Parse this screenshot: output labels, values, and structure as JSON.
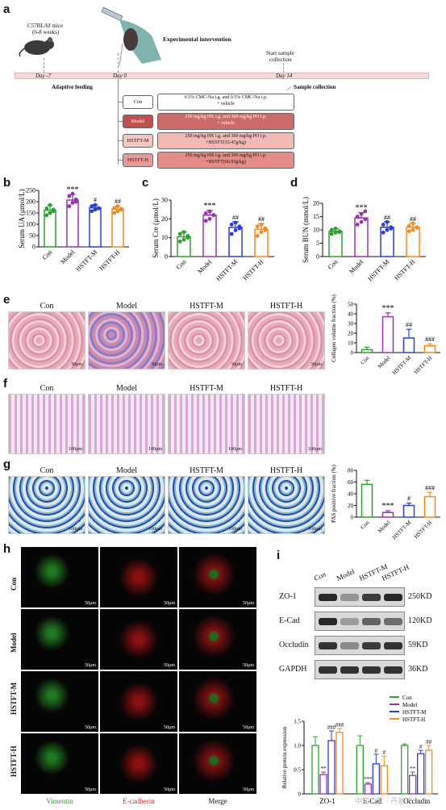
{
  "panel_labels": {
    "a": "a",
    "b": "b",
    "c": "c",
    "d": "d",
    "e": "e",
    "f": "f",
    "g": "g",
    "h": "h",
    "i": "i"
  },
  "scheme": {
    "mice": "C57BL/6J mice",
    "mice_age": "(6-8 weeks)",
    "intervention": "Experimental intervention",
    "start_sample": "Start sample",
    "collection": "collection",
    "day_m7": "Day -7",
    "day_0": "Day 0",
    "day_14": "Day 14",
    "adaptive": "Adaptive feeding",
    "sample_collection": "Sample collection",
    "groups": [
      {
        "name": "Con",
        "line1": "0.5% CMC-Na i.g. and 0.5% CMC-Na i.p.",
        "line2": "+ vehicle",
        "color": "#ffffff",
        "condcolor": "#ffffff",
        "textcolor": "#111111"
      },
      {
        "name": "Model",
        "line1": "250 mg/kg HX i.g. and 300 mg/kg PO i.p.",
        "line2": "+ vehicle",
        "color": "#c0504d",
        "condcolor": "#cd6b68",
        "textcolor": "#ffffff"
      },
      {
        "name": "HSTFT-M",
        "line1": "250 mg/kg HX i.g. and 300 mg/kg PO i.p.",
        "line2": "+HSTFT(33.47g/kg)",
        "color": "#f4c7c3",
        "condcolor": "#f2b8b3",
        "textcolor": "#111111"
      },
      {
        "name": "HSTFT-H",
        "line1": "250 mg/kg HX i.g. and 300 mg/kg PO i.p.",
        "line2": "+HSTFT(66.93g/kg)",
        "color": "#e99a95",
        "condcolor": "#e58c86",
        "textcolor": "#111111"
      }
    ]
  },
  "categories": [
    "Con",
    "Model",
    "HSTFT-M",
    "HSTFT-H"
  ],
  "colors": {
    "con": "#2ca02c",
    "model": "#9b30b0",
    "hm": "#2a3fd6",
    "hh": "#f28a1e"
  },
  "chart_data": [
    {
      "id": "b",
      "type": "bar",
      "ylabel": "Serum UA (μmol/L)",
      "ylim": [
        0,
        250
      ],
      "yticks": [
        0,
        50,
        100,
        150,
        200,
        250
      ],
      "categories": [
        "Con",
        "Model",
        "HSTFT-M",
        "HSTFT-H"
      ],
      "values": [
        162,
        207,
        173,
        167
      ],
      "errors": [
        22,
        25,
        14,
        15
      ],
      "points": [
        [
          140,
          150,
          165,
          170,
          185,
          158
        ],
        [
          180,
          195,
          210,
          225,
          235,
          200
        ],
        [
          158,
          165,
          172,
          180,
          185,
          170
        ],
        [
          150,
          158,
          165,
          172,
          180,
          168
        ]
      ],
      "annotations": [
        "",
        "***",
        "#",
        "##"
      ]
    },
    {
      "id": "c",
      "type": "bar",
      "ylabel": "Serum Cre (μmol/L)",
      "ylim": [
        0,
        30
      ],
      "yticks": [
        0,
        10,
        20,
        30
      ],
      "categories": [
        "Con",
        "Model",
        "HSTFT-M",
        "HSTFT-H"
      ],
      "values": [
        10.5,
        22,
        15.5,
        14.5
      ],
      "errors": [
        2.5,
        2.5,
        3,
        3
      ],
      "points": [
        [
          8,
          9,
          10,
          12,
          13,
          11
        ],
        [
          19,
          20,
          22,
          23,
          24,
          22
        ],
        [
          12,
          14,
          15,
          17,
          18,
          16
        ],
        [
          11,
          13,
          14,
          16,
          17,
          15
        ]
      ],
      "annotations": [
        "",
        "***",
        "##",
        "##"
      ]
    },
    {
      "id": "d",
      "type": "bar",
      "ylabel": "Serum BUN (mmol/L)",
      "ylim": [
        0,
        20
      ],
      "yticks": [
        0,
        5,
        10,
        15,
        20
      ],
      "categories": [
        "Con",
        "Model",
        "HSTFT-M",
        "HSTFT-H"
      ],
      "values": [
        9.5,
        14.5,
        11,
        11
      ],
      "errors": [
        1,
        2,
        2,
        1.5
      ],
      "points": [
        [
          8.5,
          9,
          9.5,
          10,
          10.5,
          9.2
        ],
        [
          12,
          13,
          14,
          15,
          16,
          17
        ],
        [
          9,
          10,
          11,
          12,
          13,
          10.5
        ],
        [
          9.5,
          10,
          11,
          11.5,
          12.5,
          10.8
        ]
      ],
      "annotations": [
        "",
        "***",
        "##",
        "##"
      ]
    },
    {
      "id": "e",
      "type": "bar",
      "ylabel": "Collagen volume fraction (%)",
      "ylim": [
        0,
        50
      ],
      "yticks": [
        0,
        10,
        20,
        30,
        40,
        50
      ],
      "categories": [
        "Con",
        "Model",
        "HSTFT-M",
        "HSTFT-H"
      ],
      "values": [
        3,
        37,
        15,
        7
      ],
      "errors": [
        2.5,
        4,
        9,
        2
      ],
      "points": [],
      "annotations": [
        "",
        "***",
        "##",
        "###"
      ]
    },
    {
      "id": "g",
      "type": "bar",
      "ylabel": "PAS positive fraction (%)",
      "ylim": [
        0,
        80
      ],
      "yticks": [
        0,
        20,
        40,
        60,
        80
      ],
      "categories": [
        "Con",
        "Model",
        "HSTFT-M",
        "HSTFT-H"
      ],
      "values": [
        56,
        8,
        20,
        35
      ],
      "errors": [
        7,
        3,
        4,
        7
      ],
      "points": [],
      "annotations": [
        "",
        "***",
        "#",
        "###"
      ]
    },
    {
      "id": "i",
      "type": "bar",
      "ylabel": "Relative protein expression",
      "ylim": [
        0,
        1.5
      ],
      "yticks": [
        0,
        0.5,
        1.0,
        1.5
      ],
      "categories": [
        "ZO-1",
        "E-Cad",
        "Occludin"
      ],
      "series": [
        {
          "name": "Con",
          "values": [
            1.0,
            1.0,
            1.0
          ],
          "errors": [
            0.18,
            0.2,
            0.03
          ]
        },
        {
          "name": "Model",
          "values": [
            0.4,
            0.2,
            0.38
          ],
          "errors": [
            0.05,
            0.03,
            0.07
          ]
        },
        {
          "name": "HSTFT-M",
          "values": [
            1.1,
            0.62,
            0.83
          ],
          "errors": [
            0.2,
            0.2,
            0.07
          ]
        },
        {
          "name": "HSTFT-H",
          "values": [
            1.27,
            0.58,
            0.9
          ],
          "errors": [
            0.08,
            0.2,
            0.1
          ]
        }
      ],
      "annotations": [
        [
          "",
          "**",
          "###",
          "###"
        ],
        [
          "",
          "***",
          "#",
          "#"
        ],
        [
          "",
          "**",
          "#",
          "##"
        ]
      ]
    }
  ],
  "micro_titles": [
    "Con",
    "Model",
    "HSTFT-M",
    "HSTFT-H"
  ],
  "scale_100": "100μm",
  "scale_50": "50μm",
  "scale_30": "30μm",
  "fluo": {
    "rows": [
      "Con",
      "Model",
      "HSTFT-M",
      "HSTFT-H"
    ],
    "cols": [
      "Vimentin",
      "E-cadherin",
      "Merge"
    ],
    "scale": "50μm"
  },
  "wb": {
    "lanes": [
      "Con",
      "Model",
      "HSTFT-M",
      "HSTFT-H"
    ],
    "proteins": [
      {
        "name": "ZO-1",
        "kd": "250KD"
      },
      {
        "name": "E-Cad",
        "kd": "120KD"
      },
      {
        "name": "Occludin",
        "kd": "59KD"
      },
      {
        "name": "GAPDH",
        "kd": "36KD"
      }
    ]
  },
  "watermark": "中知 · 思 · 丹爸子"
}
